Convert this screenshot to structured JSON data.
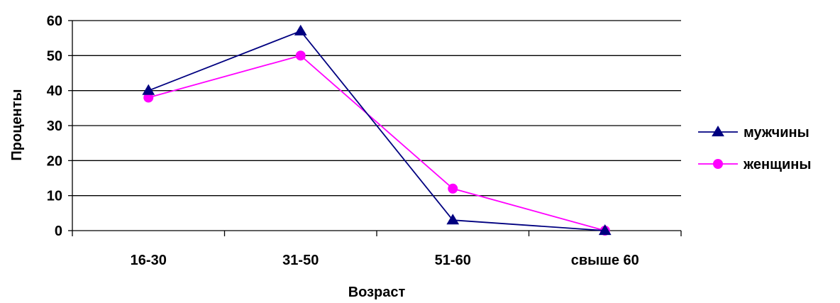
{
  "chart_data": {
    "type": "line",
    "categories": [
      "16-30",
      "31-50",
      "51-60",
      "свыше 60"
    ],
    "series": [
      {
        "name": "мужчины",
        "values": [
          40,
          57,
          3,
          0
        ],
        "color": "#000080",
        "marker": "triangle"
      },
      {
        "name": "женщины",
        "values": [
          38,
          50,
          12,
          0
        ],
        "color": "#ff00ff",
        "marker": "circle"
      }
    ],
    "xlabel": "Возраст",
    "ylabel": "Проценты",
    "ylim": [
      0,
      60
    ],
    "yticks": [
      0,
      10,
      20,
      30,
      40,
      50,
      60
    ],
    "grid": true,
    "legend_position": "right"
  }
}
